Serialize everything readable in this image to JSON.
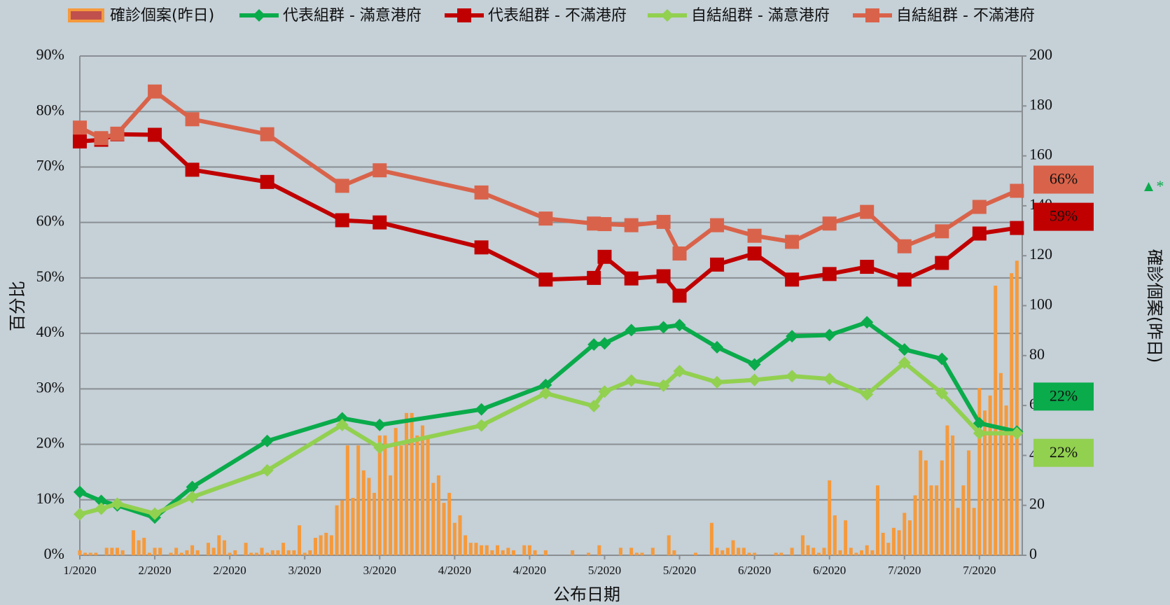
{
  "chart_data": {
    "type": "combo",
    "x_label": "公布日期",
    "y_label": "百分比",
    "y2_label": "確診個案(昨日)",
    "annotation": "▲*",
    "xlim": [
      0,
      176
    ],
    "xticks": [
      {
        "value": 0,
        "label": "1/2020"
      },
      {
        "value": 14,
        "label": "2/2020"
      },
      {
        "value": 28,
        "label": "2/2020"
      },
      {
        "value": 42,
        "label": "3/2020"
      },
      {
        "value": 56,
        "label": "3/2020"
      },
      {
        "value": 70,
        "label": "4/2020"
      },
      {
        "value": 84,
        "label": "4/2020"
      },
      {
        "value": 98,
        "label": "5/2020"
      },
      {
        "value": 112,
        "label": "5/2020"
      },
      {
        "value": 126,
        "label": "6/2020"
      },
      {
        "value": 140,
        "label": "6/2020"
      },
      {
        "value": 154,
        "label": "7/2020"
      },
      {
        "value": 168,
        "label": "7/2020"
      }
    ],
    "ylim": [
      0,
      90
    ],
    "yticks": [
      {
        "value": 0,
        "label": "0%"
      },
      {
        "value": 10,
        "label": "10%"
      },
      {
        "value": 20,
        "label": "20%"
      },
      {
        "value": 30,
        "label": "30%"
      },
      {
        "value": 40,
        "label": "40%"
      },
      {
        "value": 50,
        "label": "50%"
      },
      {
        "value": 60,
        "label": "60%"
      },
      {
        "value": 70,
        "label": "70%"
      },
      {
        "value": 80,
        "label": "80%"
      },
      {
        "value": 90,
        "label": "90%"
      }
    ],
    "y2lim": [
      0,
      200
    ],
    "y2ticks": [
      0,
      20,
      40,
      60,
      80,
      100,
      120,
      140,
      160,
      180,
      200
    ],
    "grid": true,
    "legend": "top",
    "series": [
      {
        "name": "確診個案(昨日)",
        "type": "bar",
        "axis": "y2",
        "color": "#f59a3c",
        "x": [
          0,
          1,
          2,
          3,
          4,
          5,
          6,
          7,
          8,
          9,
          10,
          11,
          12,
          13,
          14,
          15,
          16,
          17,
          18,
          19,
          20,
          21,
          22,
          23,
          24,
          25,
          26,
          27,
          28,
          29,
          30,
          31,
          32,
          33,
          34,
          35,
          36,
          37,
          38,
          39,
          40,
          41,
          42,
          43,
          44,
          45,
          46,
          47,
          48,
          49,
          50,
          51,
          52,
          53,
          54,
          55,
          56,
          57,
          58,
          59,
          60,
          61,
          62,
          63,
          64,
          65,
          66,
          67,
          68,
          69,
          70,
          71,
          72,
          73,
          74,
          75,
          76,
          77,
          78,
          79,
          80,
          81,
          82,
          83,
          84,
          85,
          86,
          87,
          88,
          89,
          90,
          91,
          92,
          93,
          94,
          95,
          96,
          97,
          98,
          99,
          100,
          101,
          102,
          103,
          104,
          105,
          106,
          107,
          108,
          109,
          110,
          111,
          112,
          113,
          114,
          115,
          116,
          117,
          118,
          119,
          120,
          121,
          122,
          123,
          124,
          125,
          126,
          127,
          128,
          129,
          130,
          131,
          132,
          133,
          134,
          135,
          136,
          137,
          138,
          139,
          140,
          141,
          142,
          143,
          144,
          145,
          146,
          147,
          148,
          149,
          150,
          151,
          152,
          153,
          154,
          155,
          156,
          157,
          158,
          159,
          160,
          161,
          162,
          163,
          164,
          165,
          166,
          167,
          168,
          169,
          170,
          171,
          172,
          173,
          174,
          175
        ],
        "values": [
          2,
          1,
          1,
          1,
          0,
          3,
          3,
          3,
          2,
          0,
          10,
          6,
          7,
          1,
          3,
          3,
          0,
          1,
          3,
          1,
          2,
          4,
          2,
          0,
          5,
          3,
          8,
          6,
          1,
          2,
          0,
          5,
          1,
          1,
          3,
          1,
          2,
          2,
          5,
          2,
          2,
          12,
          1,
          2,
          7,
          8,
          9,
          8,
          20,
          22,
          44,
          23,
          44,
          34,
          31,
          25,
          48,
          48,
          32,
          51,
          44,
          57,
          57,
          48,
          52,
          47,
          29,
          32,
          21,
          25,
          13,
          16,
          8,
          5,
          5,
          4,
          4,
          2,
          4,
          2,
          3,
          2,
          0,
          4,
          4,
          2,
          0,
          2,
          0,
          0,
          0,
          0,
          2,
          0,
          0,
          1,
          0,
          4,
          0,
          0,
          0,
          3,
          0,
          3,
          1,
          1,
          0,
          3,
          0,
          0,
          8,
          2,
          0,
          0,
          0,
          1,
          0,
          0,
          13,
          3,
          2,
          3,
          6,
          3,
          3,
          1,
          1,
          0,
          0,
          0,
          1,
          1,
          0,
          3,
          0,
          8,
          4,
          3,
          1,
          3,
          30,
          16,
          2,
          14,
          3,
          1,
          2,
          4,
          2,
          28,
          9,
          5,
          11,
          10,
          17,
          14,
          24,
          42,
          38,
          28,
          28,
          38,
          52,
          48,
          19,
          28,
          42,
          19,
          67,
          58,
          64,
          108,
          73,
          60,
          113,
          118
        ]
      },
      {
        "name": "代表組群 - 滿意港府",
        "type": "line",
        "marker": "diamond",
        "color": "#0aab4b",
        "x": [
          0,
          4,
          7,
          14,
          21,
          35,
          49,
          56,
          75,
          87,
          96,
          98,
          103,
          109,
          112,
          119,
          126,
          133,
          140,
          147,
          154,
          161,
          168,
          175
        ],
        "values": [
          11.4,
          9.8,
          9.0,
          6.8,
          12.3,
          20.6,
          24.7,
          23.5,
          26.3,
          30.7,
          38.0,
          38.2,
          40.6,
          41.1,
          41.5,
          37.5,
          34.4,
          39.5,
          39.7,
          42.0,
          37.1,
          35.4,
          23.8,
          22.3
        ],
        "value_labels": [
          null,
          null,
          null,
          null,
          null,
          null,
          null,
          null,
          null,
          null,
          null,
          null,
          null,
          null,
          null,
          null,
          null,
          null,
          null,
          null,
          null,
          null,
          null,
          "22%"
        ]
      },
      {
        "name": "代表組群 - 不滿港府",
        "type": "line",
        "marker": "square",
        "color": "#c00000",
        "x": [
          0,
          4,
          7,
          14,
          21,
          35,
          49,
          56,
          75,
          87,
          96,
          98,
          103,
          109,
          112,
          119,
          126,
          133,
          140,
          147,
          154,
          161,
          168,
          175
        ],
        "values": [
          74.6,
          74.9,
          75.9,
          75.8,
          69.5,
          67.3,
          60.4,
          60.0,
          55.5,
          49.7,
          50.0,
          53.8,
          49.9,
          50.3,
          46.8,
          52.4,
          54.4,
          49.7,
          50.7,
          52.0,
          49.7,
          52.7,
          58.0,
          59.0
        ],
        "value_labels": [
          null,
          null,
          null,
          null,
          null,
          null,
          null,
          null,
          null,
          null,
          null,
          null,
          null,
          null,
          null,
          null,
          null,
          null,
          null,
          null,
          null,
          null,
          null,
          "59%"
        ]
      },
      {
        "name": "自結組群 - 滿意港府",
        "type": "line",
        "marker": "diamond",
        "color": "#92d050",
        "x": [
          0,
          4,
          7,
          14,
          21,
          35,
          49,
          56,
          75,
          87,
          96,
          98,
          103,
          109,
          112,
          119,
          126,
          133,
          140,
          147,
          154,
          161,
          168,
          175
        ],
        "values": [
          7.4,
          8.4,
          9.3,
          7.5,
          10.5,
          15.3,
          23.5,
          19.4,
          23.4,
          29.2,
          26.9,
          29.5,
          31.5,
          30.6,
          33.2,
          31.2,
          31.6,
          32.3,
          31.8,
          29.0,
          34.7,
          29.2,
          22.0,
          22.0
        ],
        "value_labels": [
          null,
          null,
          null,
          null,
          null,
          null,
          null,
          null,
          null,
          null,
          null,
          null,
          null,
          null,
          null,
          null,
          null,
          null,
          null,
          null,
          null,
          null,
          null,
          "22%"
        ]
      },
      {
        "name": "自結組群 - 不滿港府",
        "type": "line",
        "marker": "square",
        "color": "#d9634a",
        "x": [
          0,
          4,
          7,
          14,
          21,
          35,
          49,
          56,
          75,
          87,
          96,
          98,
          103,
          109,
          112,
          119,
          126,
          133,
          140,
          147,
          154,
          161,
          168,
          175
        ],
        "values": [
          77.1,
          75.2,
          76.0,
          83.6,
          78.6,
          75.9,
          66.6,
          69.4,
          65.4,
          60.7,
          59.8,
          59.7,
          59.5,
          60.1,
          54.4,
          59.5,
          57.6,
          56.5,
          59.8,
          61.9,
          55.7,
          58.4,
          62.8,
          65.7
        ],
        "value_labels": [
          null,
          null,
          null,
          null,
          null,
          null,
          null,
          null,
          null,
          null,
          null,
          null,
          null,
          null,
          null,
          null,
          null,
          null,
          null,
          null,
          null,
          null,
          null,
          "66%"
        ]
      }
    ]
  }
}
